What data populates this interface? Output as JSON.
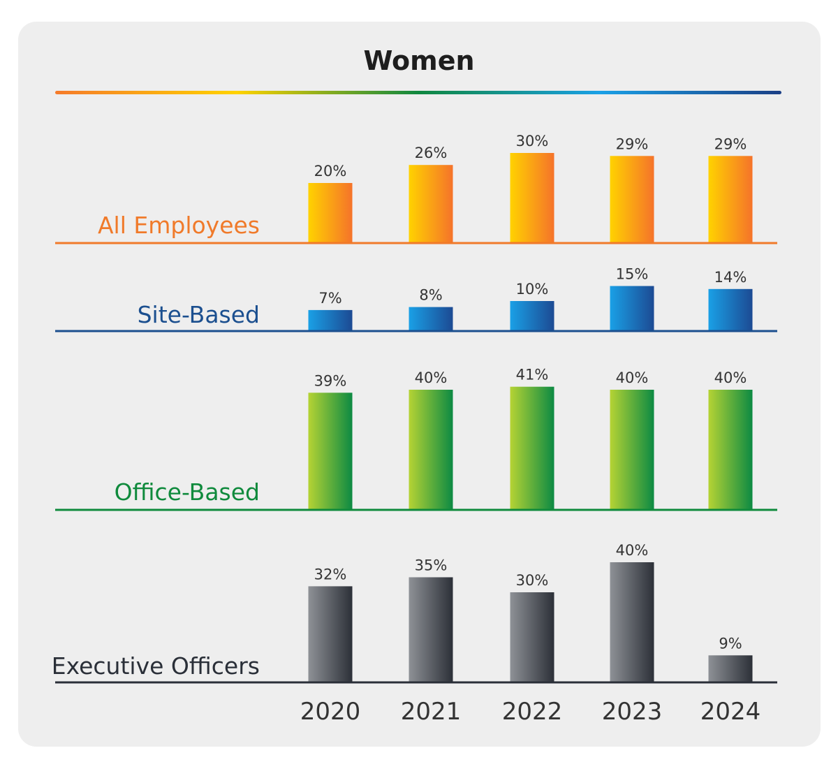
{
  "chart_data": {
    "type": "bar",
    "title": "Women",
    "categories": [
      "2020",
      "2021",
      "2022",
      "2023",
      "2024"
    ],
    "unit": "%",
    "series": [
      {
        "name": "All Employees",
        "values": [
          20,
          26,
          30,
          29,
          29
        ],
        "label_color": "#f07a2a",
        "line_color": "#f07a2a",
        "gradient": [
          "#ffd200",
          "#f5732a"
        ]
      },
      {
        "name": "Site-Based",
        "values": [
          7,
          8,
          10,
          15,
          14
        ],
        "label_color": "#1b4f8f",
        "line_color": "#1b4f8f",
        "gradient": [
          "#1aa0e6",
          "#1c4a93"
        ]
      },
      {
        "name": "Office-Based",
        "values": [
          39,
          40,
          41,
          40,
          40
        ],
        "label_color": "#0f8a3c",
        "line_color": "#0f8a3c",
        "gradient": [
          "#b5d334",
          "#0c8a43"
        ]
      },
      {
        "name": "Executive Officers",
        "values": [
          32,
          35,
          30,
          40,
          9
        ],
        "label_color": "#2a2f38",
        "line_color": "#2a2f38",
        "gradient": [
          "#8e9196",
          "#2c3038"
        ]
      }
    ],
    "title_rule_gradient": [
      "#f57a2a",
      "#ffd200",
      "#10873f",
      "#1aa0e6",
      "#1b3f85"
    ]
  }
}
